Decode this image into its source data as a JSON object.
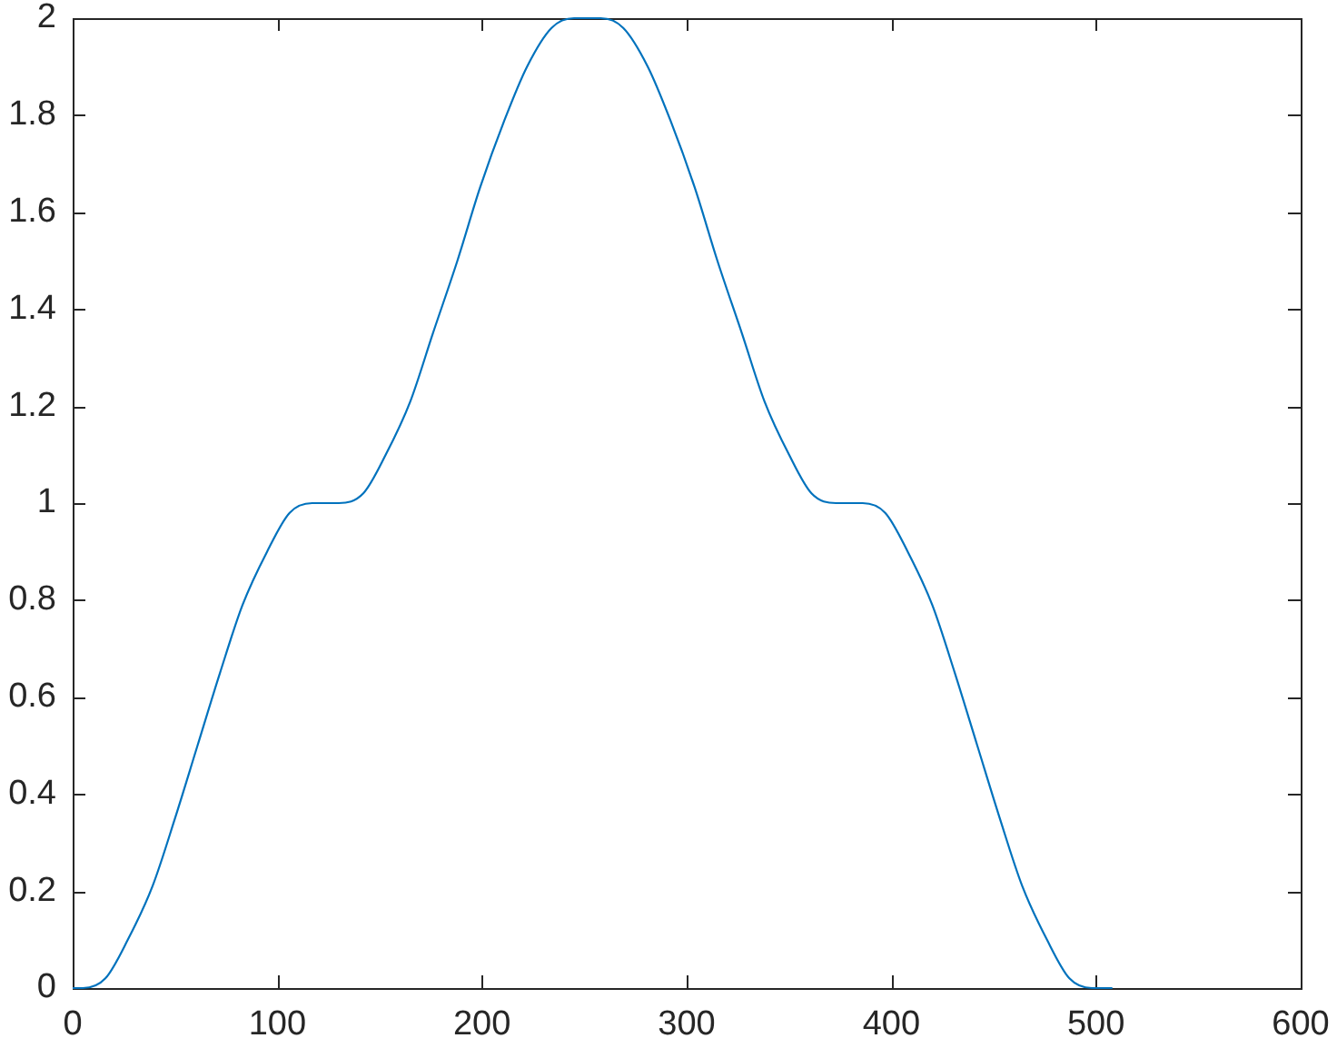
{
  "chart_data": {
    "type": "line",
    "color": "#0072bd",
    "x": [
      0,
      5,
      16,
      27,
      39,
      50,
      61,
      72,
      83,
      95,
      106,
      117,
      130,
      142,
      153,
      165,
      176,
      188,
      199,
      211,
      222,
      234,
      245,
      258,
      269,
      281,
      292,
      304,
      315,
      327,
      338,
      350,
      361,
      373,
      386,
      397,
      408,
      420,
      431,
      442,
      453,
      464,
      476,
      487,
      498,
      508
    ],
    "values": [
      0,
      0,
      0.02,
      0.1,
      0.21,
      0.35,
      0.5,
      0.65,
      0.79,
      0.9,
      0.98,
      1,
      1,
      1.02,
      1.1,
      1.21,
      1.35,
      1.5,
      1.65,
      1.79,
      1.9,
      1.98,
      2,
      2,
      1.98,
      1.9,
      1.79,
      1.65,
      1.5,
      1.35,
      1.21,
      1.1,
      1.02,
      1,
      1,
      0.98,
      0.9,
      0.79,
      0.65,
      0.5,
      0.35,
      0.21,
      0.1,
      0.02,
      0,
      0
    ],
    "xlim": [
      0,
      600
    ],
    "xticks": [
      0,
      100,
      200,
      300,
      400,
      500,
      600
    ],
    "ylim": [
      0,
      2
    ],
    "yticks": [
      0,
      0.2,
      0.4,
      0.6,
      0.8,
      1,
      1.2,
      1.4,
      1.6,
      1.8,
      2
    ]
  }
}
